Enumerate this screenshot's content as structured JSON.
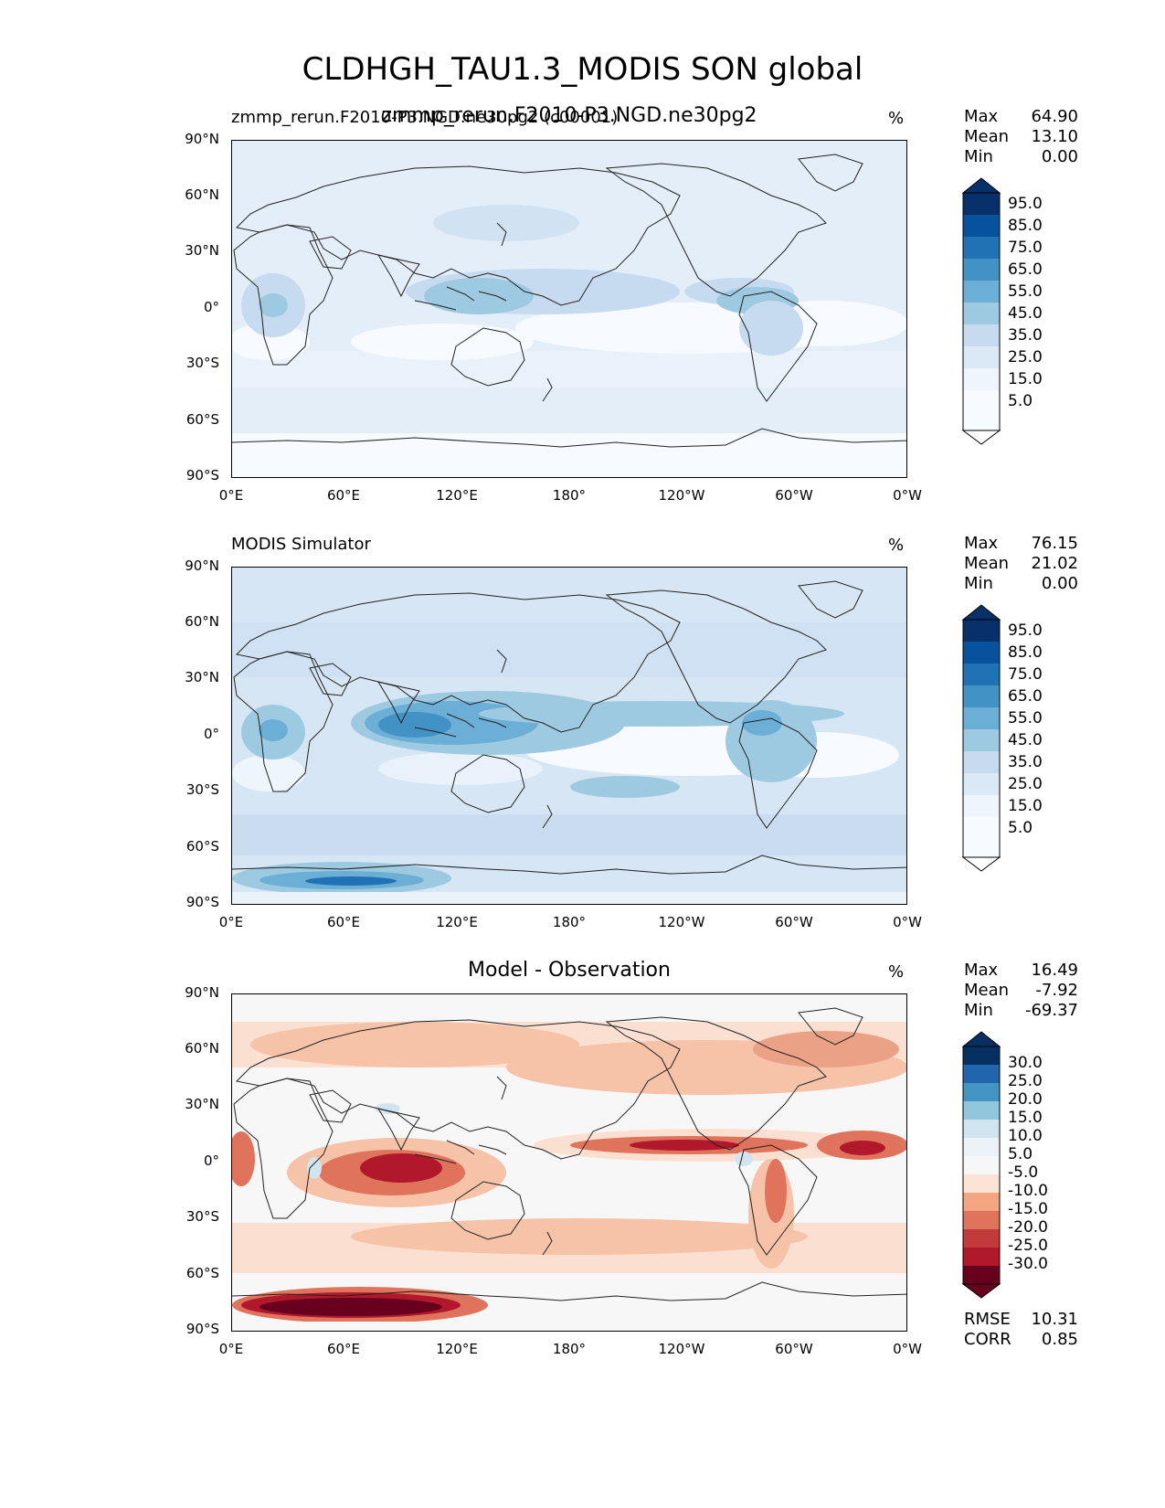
{
  "title": "CLDHGH_TAU1.3_MODIS SON global",
  "axis": {
    "lat_labels": [
      "90°N",
      "60°N",
      "30°N",
      "0°",
      "30°S",
      "60°S",
      "90°S"
    ],
    "lon_labels": [
      "0°E",
      "60°E",
      "120°E",
      "180°",
      "120°W",
      "60°W",
      "0°W"
    ]
  },
  "panels": [
    {
      "left_title": "zmmp_rerun.F2010-P3.NGD.ne30pg2 (c00001)",
      "center_title": "zmmp_rerun.F2010-P3.NGD.ne30pg2",
      "unit": "%",
      "stats": [
        [
          "Max",
          "64.90"
        ],
        [
          "Mean",
          "13.10"
        ],
        [
          "Min",
          "0.00"
        ]
      ],
      "colorbar_labels": [
        "95.0",
        "85.0",
        "75.0",
        "65.0",
        "55.0",
        "45.0",
        "35.0",
        "25.0",
        "15.0",
        "5.0"
      ],
      "colorbar_colors": [
        "#08306b",
        "#08519c",
        "#2171b5",
        "#4292c6",
        "#6baed6",
        "#9ecae1",
        "#c6dbef",
        "#dbe9f6",
        "#eff5fc",
        "#f7fbff"
      ],
      "colormap": "Blues"
    },
    {
      "left_title": "MODIS Simulator",
      "center_title": "",
      "unit": "%",
      "stats": [
        [
          "Max",
          "76.15"
        ],
        [
          "Mean",
          "21.02"
        ],
        [
          "Min",
          "0.00"
        ]
      ],
      "colorbar_labels": [
        "95.0",
        "85.0",
        "75.0",
        "65.0",
        "55.0",
        "45.0",
        "35.0",
        "25.0",
        "15.0",
        "5.0"
      ],
      "colorbar_colors": [
        "#08306b",
        "#08519c",
        "#2171b5",
        "#4292c6",
        "#6baed6",
        "#9ecae1",
        "#c6dbef",
        "#dbe9f6",
        "#eff5fc",
        "#f7fbff"
      ],
      "colormap": "Blues"
    },
    {
      "left_title": "",
      "center_title": "Model - Observation",
      "unit": "%",
      "stats": [
        [
          "Max",
          "16.49"
        ],
        [
          "Mean",
          "-7.92"
        ],
        [
          "Min",
          "-69.37"
        ]
      ],
      "colorbar_labels": [
        "30.0",
        "25.0",
        "20.0",
        "15.0",
        "10.0",
        "5.0",
        "-5.0",
        "-10.0",
        "-15.0",
        "-20.0",
        "-25.0",
        "-30.0"
      ],
      "colorbar_colors": [
        "#053061",
        "#2166ac",
        "#4393c3",
        "#92c5de",
        "#d1e5f0",
        "#eaf2f7",
        "#f7f7f7",
        "#fbe3d6",
        "#f4a582",
        "#e0735c",
        "#c13b3a",
        "#b2182b",
        "#67001f"
      ],
      "colormap": "RdBu_r",
      "bottom_stats": [
        [
          "RMSE",
          "10.31"
        ],
        [
          "CORR",
          "0.85"
        ]
      ]
    }
  ]
}
